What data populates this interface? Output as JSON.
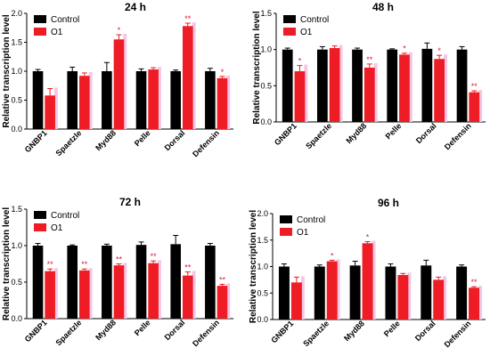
{
  "chart_data": [
    {
      "type": "bar",
      "title": "24 h",
      "ylabel": "Relative transcription level",
      "xlabel": "",
      "ylim": [
        0,
        2.0
      ],
      "yticks": [
        "0.0",
        "0.5",
        "1.0",
        "1.5",
        "2.0"
      ],
      "categories": [
        "GNBP1",
        "Spaetzle",
        "Myd88",
        "Pelle",
        "Dorsal",
        "Defensin"
      ],
      "series": [
        {
          "name": "Control",
          "values": [
            1.0,
            1.0,
            1.0,
            1.0,
            1.0,
            1.0
          ],
          "errors": [
            0.03,
            0.07,
            0.15,
            0.04,
            0.02,
            0.05
          ]
        },
        {
          "name": "O1",
          "values": [
            0.58,
            0.92,
            1.55,
            1.03,
            1.78,
            0.88
          ],
          "errors": [
            0.12,
            0.05,
            0.08,
            0.03,
            0.05,
            0.03
          ]
        }
      ],
      "significance": [
        "",
        "",
        "*",
        "",
        "**",
        "*"
      ],
      "legend_position": "top-left"
    },
    {
      "type": "bar",
      "title": "48 h",
      "ylabel": "Relative transcription level",
      "xlabel": "",
      "ylim": [
        0,
        1.5
      ],
      "yticks": [
        "0.0",
        "0.5",
        "1.0",
        "1.5"
      ],
      "categories": [
        "GNBP1",
        "Spaetzle",
        "Myd88",
        "Pelle",
        "Dorsal",
        "Defensin"
      ],
      "series": [
        {
          "name": "Control",
          "values": [
            1.0,
            1.0,
            1.0,
            1.0,
            1.01,
            1.0
          ],
          "errors": [
            0.02,
            0.04,
            0.02,
            0.01,
            0.08,
            0.04
          ]
        },
        {
          "name": "O1",
          "values": [
            0.7,
            1.02,
            0.75,
            0.93,
            0.87,
            0.41
          ],
          "errors": [
            0.08,
            0.03,
            0.05,
            0.02,
            0.05,
            0.02
          ]
        }
      ],
      "significance": [
        "*",
        "",
        "**",
        "*",
        "*",
        "**"
      ],
      "legend_position": "top-left"
    },
    {
      "type": "bar",
      "title": "72 h",
      "ylabel": "Relative transcription level",
      "xlabel": "",
      "ylim": [
        0,
        1.5
      ],
      "yticks": [
        "0.0",
        "0.5",
        "1.0",
        "1.5"
      ],
      "categories": [
        "GNBP1",
        "Spaetzle",
        "Myd88",
        "Pelle",
        "Dorsal",
        "Defensin"
      ],
      "series": [
        {
          "name": "Control",
          "values": [
            1.0,
            1.0,
            1.0,
            1.01,
            1.02,
            1.0
          ],
          "errors": [
            0.03,
            0.01,
            0.02,
            0.04,
            0.12,
            0.03
          ]
        },
        {
          "name": "O1",
          "values": [
            0.65,
            0.66,
            0.73,
            0.76,
            0.59,
            0.45
          ],
          "errors": [
            0.03,
            0.02,
            0.02,
            0.03,
            0.05,
            0.02
          ]
        }
      ],
      "significance": [
        "**",
        "**",
        "**",
        "**",
        "**",
        "**"
      ],
      "legend_position": "top-left"
    },
    {
      "type": "bar",
      "title": "96 h",
      "ylabel": "Relative transcription level",
      "xlabel": "",
      "ylim": [
        0,
        2.0
      ],
      "yticks": [
        "0.0",
        "0.5",
        "1.0",
        "1.5",
        "2.0"
      ],
      "categories": [
        "GNBP1",
        "Spaetzle",
        "Myd88",
        "Pelle",
        "Dorsal",
        "Defensin"
      ],
      "series": [
        {
          "name": "Control",
          "values": [
            1.0,
            1.0,
            1.02,
            1.0,
            1.02,
            1.0
          ],
          "errors": [
            0.05,
            0.03,
            0.08,
            0.05,
            0.1,
            0.03
          ]
        },
        {
          "name": "O1",
          "values": [
            0.7,
            1.1,
            1.44,
            0.84,
            0.75,
            0.6
          ],
          "errors": [
            0.1,
            0.02,
            0.03,
            0.03,
            0.05,
            0.02
          ]
        }
      ],
      "significance": [
        "",
        "*",
        "*",
        "",
        "",
        "**"
      ],
      "legend_position": "top-left"
    }
  ],
  "colors": {
    "control": "#000000",
    "o1": "#ee1c25",
    "o1_highlight": "#f5c6e6",
    "significance": "#d0213a"
  }
}
